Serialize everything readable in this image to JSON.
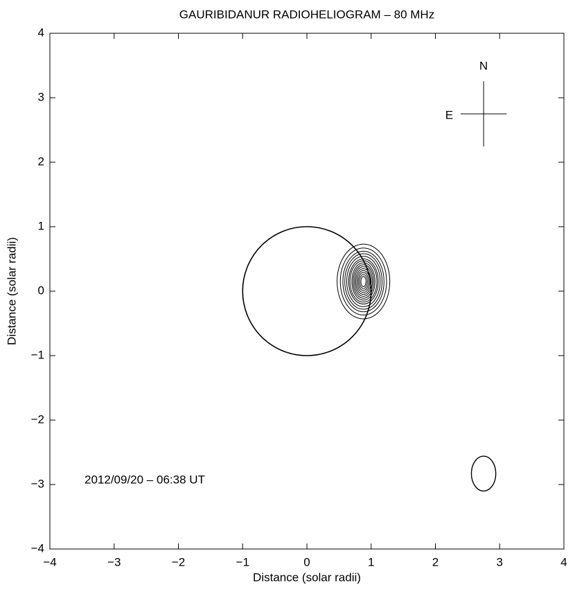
{
  "chart_data": {
    "type": "contour",
    "title": "GAURIBIDANUR RADIOHELIOGRAM – 80 MHz",
    "x_label": "Distance (solar radii)",
    "y_label": "Distance (solar radii)",
    "annotation": "2012/09/20 – 06:38 UT",
    "compass": {
      "north": "N",
      "east": "E",
      "x": 2.75,
      "y": 2.75
    },
    "xlim": [
      -4,
      4
    ],
    "ylim": [
      -4,
      4
    ],
    "xticks": [
      {
        "value": -4,
        "label": "−4"
      },
      {
        "value": -3,
        "label": "−3"
      },
      {
        "value": -2,
        "label": "−2"
      },
      {
        "value": -1,
        "label": "−1"
      },
      0,
      1,
      2,
      3,
      4
    ],
    "yticks": [
      {
        "value": -4,
        "label": "−4"
      },
      {
        "value": -3,
        "label": "−3"
      },
      {
        "value": -2,
        "label": "−2"
      },
      {
        "value": -1,
        "label": "−1"
      },
      0,
      1,
      2,
      3,
      4
    ],
    "color": "#000000",
    "disk": {
      "x": 0,
      "y": 0,
      "r": 1
    },
    "contours": {
      "x": 0.88,
      "y": 0.15,
      "rx": [
        0.41,
        0.36,
        0.32,
        0.29,
        0.26,
        0.23,
        0.21,
        0.18,
        0.16,
        0.14,
        0.12,
        0.1,
        0.08,
        0.06,
        0.04
      ],
      "ry": [
        0.58,
        0.52,
        0.47,
        0.43,
        0.39,
        0.35,
        0.32,
        0.29,
        0.26,
        0.23,
        0.2,
        0.17,
        0.14,
        0.11,
        0.08
      ]
    },
    "beam": {
      "x": 2.75,
      "y": -2.83,
      "rx": 0.19,
      "ry": 0.27
    }
  }
}
